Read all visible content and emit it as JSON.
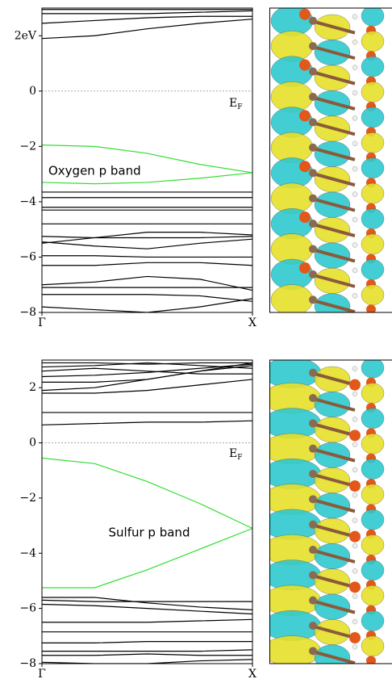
{
  "chart_data": [
    {
      "type": "line",
      "x": [
        0,
        0.25,
        0.5,
        0.75,
        1
      ],
      "xlim": [
        0,
        1
      ],
      "xticks": [
        {
          "value": 0,
          "label": "Γ"
        },
        {
          "value": 1,
          "label": "X"
        }
      ],
      "ylim": [
        -8,
        3
      ],
      "yticks": [
        {
          "value": 2,
          "label": "2eV"
        },
        0,
        {
          "value": -2,
          "label": "−2"
        },
        {
          "value": -4,
          "label": "−4"
        },
        {
          "value": -6,
          "label": "−6"
        },
        {
          "value": -8,
          "label": "−8"
        }
      ],
      "reference_line": 0,
      "fermi_label": {
        "text": "E",
        "subscript": "F"
      },
      "annotation": {
        "text": "Oxygen p band",
        "color": "#1f9a1f"
      },
      "series": [
        {
          "color": "#000000",
          "values": [
            2.95,
            2.95,
            2.95,
            2.95,
            2.95
          ]
        },
        {
          "color": "#000000",
          "values": [
            2.8,
            2.8,
            2.8,
            2.85,
            2.9
          ]
        },
        {
          "color": "#000000",
          "values": [
            2.45,
            2.55,
            2.65,
            2.7,
            2.7
          ]
        },
        {
          "color": "#000000",
          "values": [
            1.9,
            2.0,
            2.25,
            2.45,
            2.6
          ]
        },
        {
          "color": "#33dd33",
          "values": [
            -1.95,
            -2.0,
            -2.25,
            -2.65,
            -2.95
          ]
        },
        {
          "color": "#33dd33",
          "values": [
            -3.3,
            -3.35,
            -3.3,
            -3.15,
            -2.95
          ]
        },
        {
          "color": "#000000",
          "values": [
            -3.65,
            -3.65,
            -3.65,
            -3.65,
            -3.65
          ]
        },
        {
          "color": "#000000",
          "values": [
            -3.85,
            -3.85,
            -3.85,
            -3.85,
            -3.85
          ]
        },
        {
          "color": "#000000",
          "values": [
            -4.2,
            -4.2,
            -4.2,
            -4.2,
            -4.2
          ]
        },
        {
          "color": "#000000",
          "values": [
            -4.3,
            -4.3,
            -4.3,
            -4.3,
            -4.3
          ]
        },
        {
          "color": "#000000",
          "values": [
            -4.8,
            -4.8,
            -4.8,
            -4.8,
            -4.8
          ]
        },
        {
          "color": "#000000",
          "values": [
            -5.25,
            -5.3,
            -5.3,
            -5.3,
            -5.25
          ]
        },
        {
          "color": "#000000",
          "values": [
            -5.5,
            -5.3,
            -5.1,
            -5.1,
            -5.2
          ]
        },
        {
          "color": "#000000",
          "values": [
            -5.45,
            -5.6,
            -5.7,
            -5.5,
            -5.35
          ]
        },
        {
          "color": "#000000",
          "values": [
            -5.95,
            -5.95,
            -6.0,
            -6.0,
            -6.0
          ]
        },
        {
          "color": "#000000",
          "values": [
            -6.3,
            -6.3,
            -6.2,
            -6.2,
            -6.3
          ]
        },
        {
          "color": "#000000",
          "values": [
            -7.0,
            -6.9,
            -6.7,
            -6.8,
            -7.2
          ]
        },
        {
          "color": "#000000",
          "values": [
            -7.1,
            -7.1,
            -7.1,
            -7.1,
            -7.1
          ]
        },
        {
          "color": "#000000",
          "values": [
            -7.35,
            -7.35,
            -7.35,
            -7.4,
            -7.6
          ]
        },
        {
          "color": "#000000",
          "values": [
            -7.8,
            -7.9,
            -8.0,
            -7.8,
            -7.5
          ]
        }
      ]
    },
    {
      "type": "line",
      "x": [
        0,
        0.25,
        0.5,
        0.75,
        1
      ],
      "xlim": [
        0,
        1
      ],
      "xticks": [
        {
          "value": 0,
          "label": "Γ"
        },
        {
          "value": 1,
          "label": "X"
        }
      ],
      "ylim": [
        -8,
        3
      ],
      "yticks": [
        2,
        0,
        {
          "value": -2,
          "label": "−2"
        },
        {
          "value": -4,
          "label": "−4"
        },
        {
          "value": -6,
          "label": "−6"
        },
        {
          "value": -8,
          "label": "−8"
        }
      ],
      "reference_line": 0,
      "fermi_label": {
        "text": "E",
        "subscript": "F"
      },
      "annotation": {
        "text": "Sulfur p band",
        "color": "#1f9a1f"
      },
      "series": [
        {
          "color": "#000000",
          "values": [
            2.9,
            2.9,
            2.85,
            2.9,
            2.9
          ]
        },
        {
          "color": "#000000",
          "values": [
            2.75,
            2.8,
            2.9,
            2.8,
            2.7
          ]
        },
        {
          "color": "#000000",
          "values": [
            2.6,
            2.7,
            2.6,
            2.5,
            2.5
          ]
        },
        {
          "color": "#000000",
          "values": [
            2.4,
            2.45,
            2.55,
            2.7,
            2.85
          ]
        },
        {
          "color": "#000000",
          "values": [
            2.2,
            2.2,
            2.3,
            2.6,
            2.9
          ]
        },
        {
          "color": "#000000",
          "values": [
            1.8,
            1.8,
            1.9,
            2.1,
            2.3
          ]
        },
        {
          "color": "#000000",
          "values": [
            1.9,
            2.0,
            2.3,
            2.6,
            2.8
          ]
        },
        {
          "color": "#000000",
          "values": [
            1.1,
            1.1,
            1.1,
            1.1,
            1.1
          ]
        },
        {
          "color": "#000000",
          "values": [
            0.65,
            0.7,
            0.75,
            0.75,
            0.8
          ]
        },
        {
          "color": "#33dd33",
          "values": [
            -0.55,
            -0.75,
            -1.4,
            -2.2,
            -3.1
          ]
        },
        {
          "color": "#33dd33",
          "values": [
            -5.25,
            -5.25,
            -4.6,
            -3.85,
            -3.1
          ]
        },
        {
          "color": "#000000",
          "values": [
            -5.6,
            -5.6,
            -5.8,
            -5.95,
            -6.05
          ]
        },
        {
          "color": "#000000",
          "values": [
            -5.7,
            -5.75,
            -5.75,
            -5.75,
            -5.75
          ]
        },
        {
          "color": "#000000",
          "values": [
            -5.85,
            -5.9,
            -6.0,
            -6.1,
            -6.2
          ]
        },
        {
          "color": "#000000",
          "values": [
            -6.5,
            -6.5,
            -6.5,
            -6.45,
            -6.4
          ]
        },
        {
          "color": "#000000",
          "values": [
            -6.85,
            -6.85,
            -6.85,
            -6.85,
            -6.85
          ]
        },
        {
          "color": "#000000",
          "values": [
            -7.25,
            -7.25,
            -7.2,
            -7.2,
            -7.2
          ]
        },
        {
          "color": "#000000",
          "values": [
            -7.55,
            -7.55,
            -7.55,
            -7.55,
            -7.5
          ]
        },
        {
          "color": "#000000",
          "values": [
            -7.7,
            -7.7,
            -7.65,
            -7.7,
            -7.7
          ]
        },
        {
          "color": "#000000",
          "values": [
            -7.95,
            -8.0,
            -8.0,
            -7.9,
            -7.85
          ]
        }
      ]
    }
  ]
}
